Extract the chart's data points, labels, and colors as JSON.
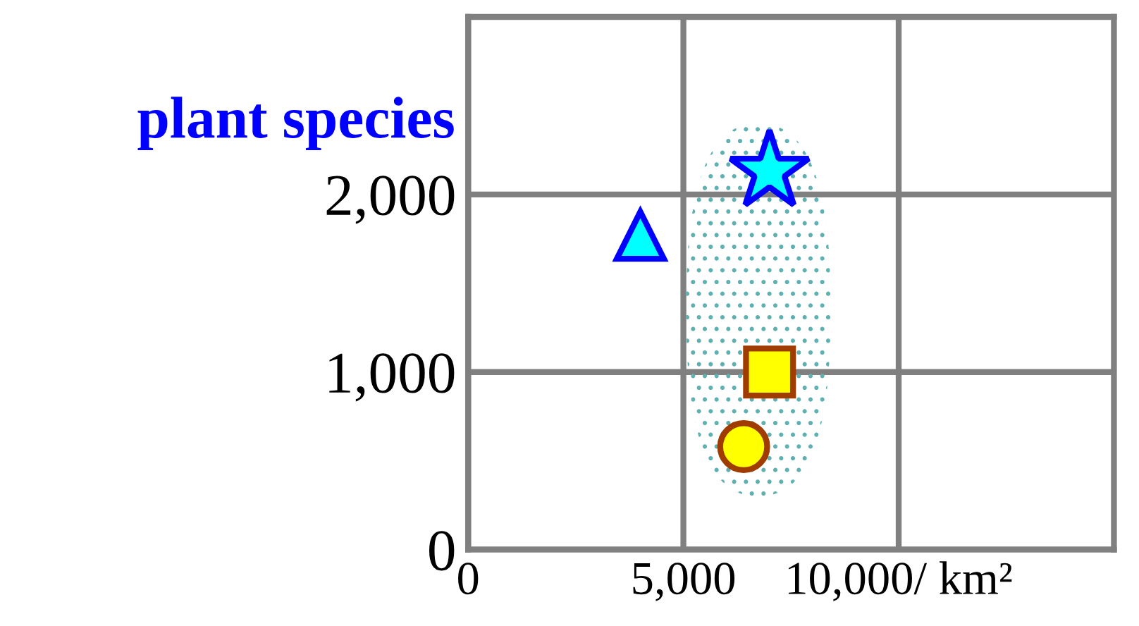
{
  "chart_data": {
    "type": "scatter",
    "ylabel": "plant species",
    "series": [
      {
        "color": "#00ffff",
        "marker": "star",
        "x": [
          7000
        ],
        "values": [
          2130
        ]
      },
      {
        "color": "#00ffff",
        "marker": "triangle",
        "x": [
          4000
        ],
        "values": [
          1770
        ]
      },
      {
        "color": "#ffff00",
        "marker": "square",
        "x": [
          7000
        ],
        "values": [
          1000
        ]
      },
      {
        "color": "#ffff00",
        "marker": "circle",
        "x": [
          6400
        ],
        "values": [
          580
        ]
      }
    ],
    "xlim": [
      0,
      15000
    ],
    "ylim": [
      0,
      3000
    ],
    "xticks": [
      0,
      {
        "value": 5000,
        "label": "5,000"
      },
      {
        "value": 10000,
        "label": "10,000/ km²"
      }
    ],
    "yticks": [
      0,
      {
        "value": 1000,
        "label": "1,000"
      },
      {
        "value": 2000,
        "label": "2,000"
      }
    ],
    "grid": true
  }
}
